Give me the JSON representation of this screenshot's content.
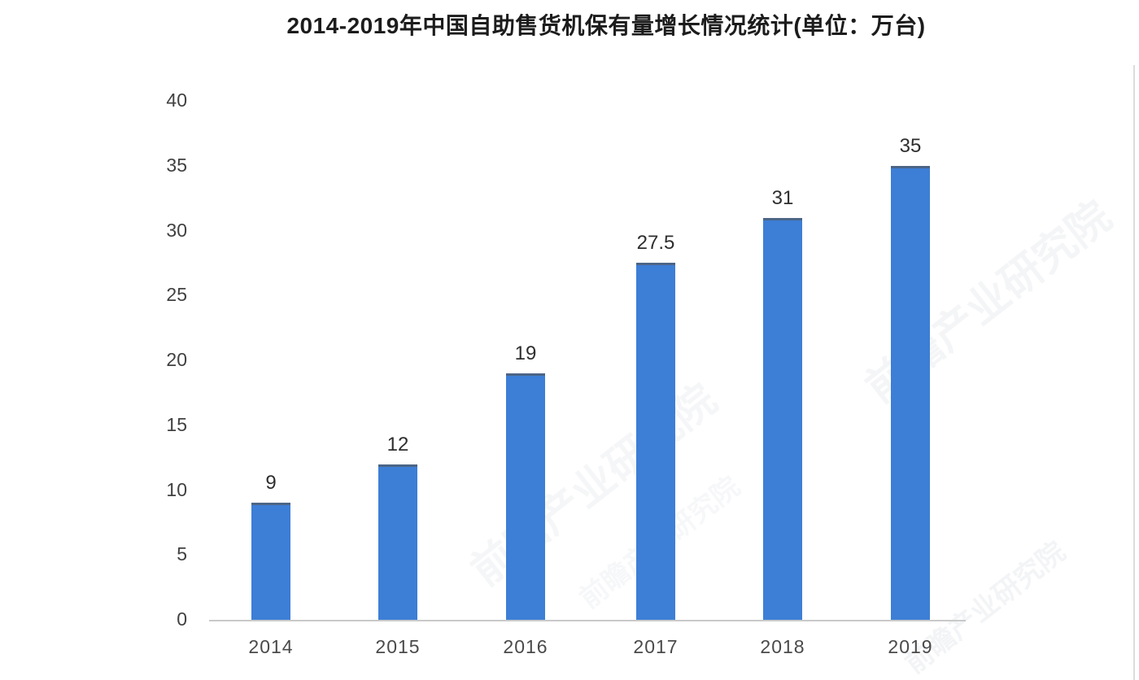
{
  "title": "2014-2019年中国自助售货机保有量增长情况统计(单位：万台)",
  "chart_data": {
    "type": "bar",
    "title": "2014-2019年中国自助售货机保有量增长情况统计(单位：万台)",
    "categories": [
      "2014",
      "2015",
      "2016",
      "2017",
      "2018",
      "2019"
    ],
    "values": [
      9,
      12,
      19,
      27.5,
      31,
      35
    ],
    "value_labels": [
      "9",
      "12",
      "19",
      "27.5",
      "31",
      "35"
    ],
    "xlabel": "",
    "ylabel": "",
    "unit": "万台",
    "ylim": [
      0,
      40
    ],
    "yticks": [
      0,
      5,
      10,
      15,
      20,
      25,
      30,
      35,
      40
    ],
    "grid": false,
    "legend": "none",
    "bar_color": "#3d7ed6",
    "bar_top_edge_color": "#4c6587",
    "axis_line_color": "#c9c9c9",
    "title_color": "#1c1c1c",
    "tick_label_color": "#414141"
  },
  "watermark": {
    "text": "前瞻产业研究院"
  }
}
